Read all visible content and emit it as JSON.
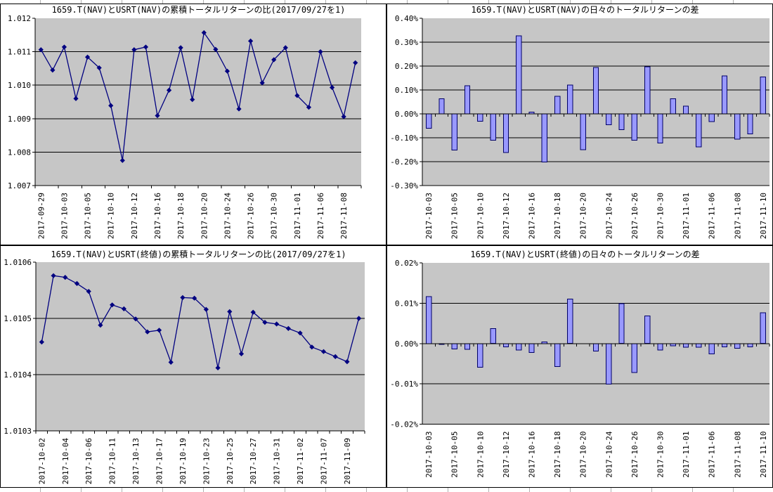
{
  "style": {
    "page_bg": "#ffffff",
    "plot_bg": "#c6c6c6",
    "grid": "#000000",
    "text": "#000000",
    "line": "#000080",
    "marker": "#000080",
    "bar_fill": "#9999ff",
    "bar_border": "#000066",
    "chart_border": "#000000",
    "sheet_gridline": "#b0b0b0"
  },
  "chart_data": [
    {
      "id": "nav-cumulative-ratio",
      "type": "line",
      "title": "1659.T(NAV)とUSRT(NAV)の累積トータルリターンの比(2017/09/27を1)",
      "ylabel": "",
      "xlabel": "",
      "legend": "none",
      "grid": "horizontal",
      "y_axis": {
        "min": 1.007,
        "max": 1.012,
        "step": 0.001,
        "decimals": 3,
        "suffix": ""
      },
      "x_label_every": 2,
      "x_tick_every": 2,
      "x": [
        "2017-09-29",
        "2017-10-02",
        "2017-10-03",
        "2017-10-04",
        "2017-10-05",
        "2017-10-06",
        "2017-10-10",
        "2017-10-11",
        "2017-10-12",
        "2017-10-13",
        "2017-10-16",
        "2017-10-17",
        "2017-10-18",
        "2017-10-19",
        "2017-10-20",
        "2017-10-23",
        "2017-10-24",
        "2017-10-25",
        "2017-10-26",
        "2017-10-27",
        "2017-10-30",
        "2017-10-31",
        "2017-11-01",
        "2017-11-02",
        "2017-11-06",
        "2017-11-07",
        "2017-11-08",
        "2017-11-09"
      ],
      "values": [
        1.01106,
        1.01045,
        1.01114,
        1.0096,
        1.01084,
        1.01052,
        1.00939,
        1.00775,
        1.01106,
        1.01114,
        1.00909,
        1.00985,
        1.01112,
        1.00957,
        1.01157,
        1.01107,
        1.01042,
        1.00929,
        1.01132,
        1.01007,
        1.01076,
        1.01112,
        1.00969,
        1.00934,
        1.011,
        1.00993,
        1.00906,
        1.01067
      ]
    },
    {
      "id": "nav-daily-diff",
      "type": "bar",
      "title": "1659.T(NAV)とUSRT(NAV)の日々のトータルリターンの差",
      "ylabel": "",
      "xlabel": "",
      "legend": "none",
      "grid": "horizontal",
      "y_axis": {
        "min": -0.3,
        "max": 0.4,
        "step": 0.1,
        "decimals": 2,
        "suffix": "%"
      },
      "x_label_every": 2,
      "x_tick_every": 1,
      "x": [
        "2017-10-03",
        "2017-10-04",
        "2017-10-05",
        "2017-10-06",
        "2017-10-10",
        "2017-10-11",
        "2017-10-12",
        "2017-10-13",
        "2017-10-16",
        "2017-10-17",
        "2017-10-18",
        "2017-10-19",
        "2017-10-20",
        "2017-10-23",
        "2017-10-24",
        "2017-10-25",
        "2017-10-26",
        "2017-10-27",
        "2017-10-30",
        "2017-10-31",
        "2017-11-01",
        "2017-11-02",
        "2017-11-06",
        "2017-11-07",
        "2017-11-08",
        "2017-11-09",
        "2017-11-10"
      ],
      "values": [
        -0.06,
        0.063,
        -0.151,
        0.118,
        -0.031,
        -0.111,
        -0.162,
        0.326,
        0.008,
        -0.201,
        0.074,
        0.12,
        -0.15,
        0.194,
        -0.046,
        -0.066,
        -0.11,
        0.197,
        -0.122,
        0.063,
        0.032,
        -0.138,
        -0.032,
        0.159,
        -0.106,
        -0.084,
        0.154
      ]
    },
    {
      "id": "close-cumulative-ratio",
      "type": "line",
      "title": "1659.T(NAV)とUSRT(終値)の累積トータルリターンの比(2017/09/27を1)",
      "ylabel": "",
      "xlabel": "",
      "legend": "none",
      "grid": "horizontal",
      "y_axis": {
        "min": 1.0103,
        "max": 1.0106,
        "step": 0.0001,
        "decimals": 4,
        "suffix": ""
      },
      "x_label_every": 2,
      "x_tick_every": 1,
      "x": [
        "2017-10-02",
        "2017-10-03",
        "2017-10-04",
        "2017-10-05",
        "2017-10-06",
        "2017-10-10",
        "2017-10-11",
        "2017-10-12",
        "2017-10-13",
        "2017-10-16",
        "2017-10-17",
        "2017-10-18",
        "2017-10-19",
        "2017-10-20",
        "2017-10-23",
        "2017-10-24",
        "2017-10-25",
        "2017-10-26",
        "2017-10-27",
        "2017-10-30",
        "2017-10-31",
        "2017-11-01",
        "2017-11-02",
        "2017-11-06",
        "2017-11-07",
        "2017-11-08",
        "2017-11-09",
        "2017-11-10"
      ],
      "values": [
        1.010458,
        1.010576,
        1.010573,
        1.010562,
        1.010548,
        1.010488,
        1.010524,
        1.010517,
        1.010499,
        1.010476,
        1.010479,
        1.010422,
        1.010537,
        1.010536,
        1.010516,
        1.010412,
        1.010512,
        1.010437,
        1.010511,
        1.010493,
        1.01049,
        1.010482,
        1.010474,
        1.010449,
        1.010441,
        1.010432,
        1.010423,
        1.0105
      ]
    },
    {
      "id": "close-daily-diff",
      "type": "bar",
      "title": "1659.T(NAV)とUSRT(終値)の日々のトータルリターンの差",
      "ylabel": "",
      "xlabel": "",
      "legend": "none",
      "grid": "horizontal",
      "y_axis": {
        "min": -0.02,
        "max": 0.02,
        "step": 0.01,
        "decimals": 2,
        "suffix": "%"
      },
      "x_label_every": 2,
      "x_tick_every": 1,
      "x": [
        "2017-10-03",
        "2017-10-04",
        "2017-10-05",
        "2017-10-06",
        "2017-10-10",
        "2017-10-11",
        "2017-10-12",
        "2017-10-13",
        "2017-10-16",
        "2017-10-17",
        "2017-10-18",
        "2017-10-19",
        "2017-10-20",
        "2017-10-23",
        "2017-10-24",
        "2017-10-25",
        "2017-10-26",
        "2017-10-27",
        "2017-10-30",
        "2017-10-31",
        "2017-11-01",
        "2017-11-02",
        "2017-11-06",
        "2017-11-07",
        "2017-11-08",
        "2017-11-09",
        "2017-11-10"
      ],
      "values": [
        0.0116,
        -0.0002,
        -0.0013,
        -0.0014,
        -0.0059,
        0.0037,
        -0.0008,
        -0.0016,
        -0.0022,
        0.0004,
        -0.0057,
        0.011,
        0,
        -0.0019,
        -0.0101,
        0.0099,
        -0.0072,
        0.0068,
        -0.0016,
        -0.0006,
        -0.0009,
        -0.0009,
        -0.0026,
        -0.0008,
        -0.0012,
        -0.0008,
        0.0076
      ]
    }
  ]
}
